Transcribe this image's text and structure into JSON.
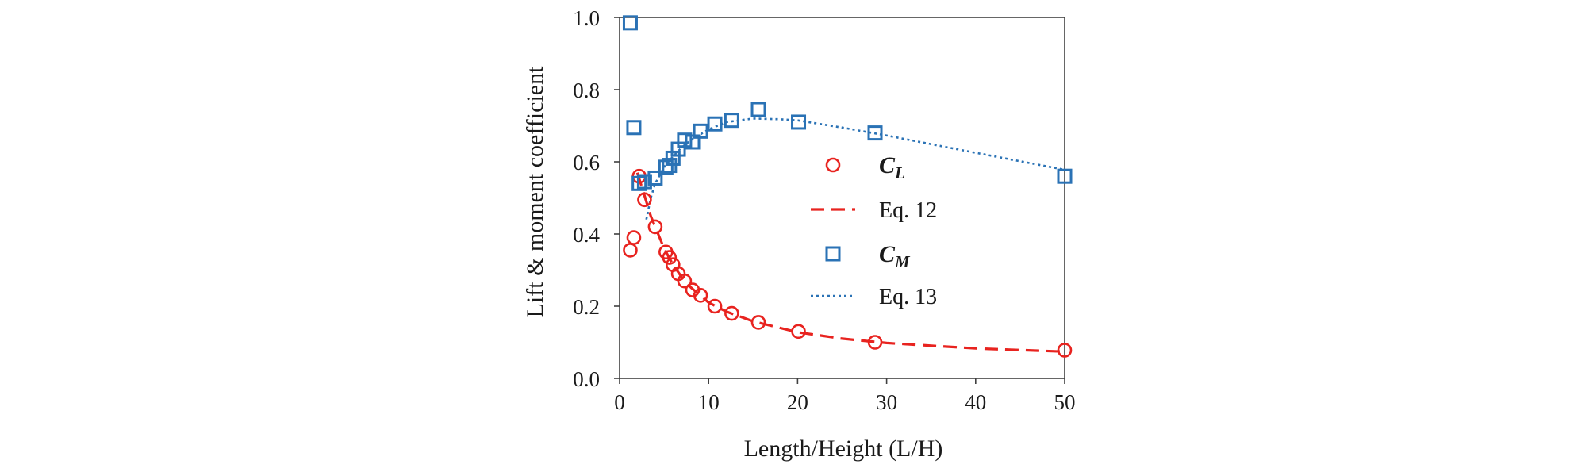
{
  "chart_data": {
    "type": "scatter",
    "xlabel": "Length/Height (L/H)",
    "ylabel": "Lift & moment coefficient",
    "xlim": [
      0,
      50
    ],
    "ylim": [
      0,
      1
    ],
    "xticks": [
      0,
      10,
      20,
      30,
      40,
      50
    ],
    "xtick_labels": [
      "0",
      "10",
      "20",
      "30",
      "40",
      "50"
    ],
    "yticks": [
      0,
      0.2,
      0.4,
      0.6,
      0.8,
      1.0
    ],
    "ytick_labels": [
      "0.0",
      "0.2",
      "0.4",
      "0.6",
      "0.8",
      "1.0"
    ],
    "grid": false,
    "legend_position": "center-right",
    "colors": {
      "cl": "#e8231f",
      "cm": "#2a72b5",
      "axis": "#404040"
    },
    "series": [
      {
        "name": "CL",
        "legend_symbol": "C",
        "legend_sub": "L",
        "marker": "circle",
        "color": "#e8231f",
        "points": [
          [
            1.2,
            0.355
          ],
          [
            1.6,
            0.39
          ],
          [
            2.2,
            0.56
          ],
          [
            2.8,
            0.495
          ],
          [
            4.0,
            0.42
          ],
          [
            5.2,
            0.35
          ],
          [
            5.6,
            0.335
          ],
          [
            6.0,
            0.315
          ],
          [
            6.6,
            0.29
          ],
          [
            7.3,
            0.27
          ],
          [
            8.2,
            0.245
          ],
          [
            9.1,
            0.23
          ],
          [
            10.7,
            0.2
          ],
          [
            12.6,
            0.18
          ],
          [
            15.6,
            0.155
          ],
          [
            20.1,
            0.13
          ],
          [
            28.7,
            0.1
          ],
          [
            50.0,
            0.078
          ]
        ]
      },
      {
        "name": "Eq. 12",
        "line_style": "dashed",
        "color": "#e8231f",
        "points": [
          [
            2.0,
            0.57
          ],
          [
            2.5,
            0.53
          ],
          [
            3.0,
            0.49
          ],
          [
            3.5,
            0.45
          ],
          [
            4.0,
            0.42
          ],
          [
            5.0,
            0.36
          ],
          [
            6.0,
            0.315
          ],
          [
            7.0,
            0.28
          ],
          [
            8.0,
            0.252
          ],
          [
            10.0,
            0.21
          ],
          [
            12.0,
            0.185
          ],
          [
            15.0,
            0.158
          ],
          [
            20.0,
            0.128
          ],
          [
            25.0,
            0.11
          ],
          [
            30.0,
            0.098
          ],
          [
            40.0,
            0.083
          ],
          [
            50.0,
            0.074
          ]
        ]
      },
      {
        "name": "CM",
        "legend_symbol": "C",
        "legend_sub": "M",
        "marker": "square",
        "color": "#2a72b5",
        "points": [
          [
            1.2,
            0.985
          ],
          [
            1.6,
            0.695
          ],
          [
            2.2,
            0.54
          ],
          [
            2.8,
            0.545
          ],
          [
            4.0,
            0.555
          ],
          [
            5.2,
            0.585
          ],
          [
            5.6,
            0.59
          ],
          [
            6.0,
            0.61
          ],
          [
            6.6,
            0.635
          ],
          [
            7.3,
            0.66
          ],
          [
            8.2,
            0.655
          ],
          [
            9.1,
            0.685
          ],
          [
            10.7,
            0.705
          ],
          [
            12.6,
            0.715
          ],
          [
            15.6,
            0.745
          ],
          [
            20.1,
            0.71
          ],
          [
            28.7,
            0.68
          ],
          [
            50.0,
            0.56
          ]
        ]
      },
      {
        "name": "Eq. 13",
        "line_style": "dotted",
        "color": "#2a72b5",
        "points": [
          [
            3.0,
            0.44
          ],
          [
            3.5,
            0.5
          ],
          [
            4.0,
            0.54
          ],
          [
            5.0,
            0.585
          ],
          [
            6.0,
            0.615
          ],
          [
            7.0,
            0.64
          ],
          [
            8.0,
            0.66
          ],
          [
            10.0,
            0.69
          ],
          [
            12.0,
            0.71
          ],
          [
            15.0,
            0.72
          ],
          [
            18.0,
            0.718
          ],
          [
            20.0,
            0.715
          ],
          [
            25.0,
            0.695
          ],
          [
            30.0,
            0.673
          ],
          [
            40.0,
            0.625
          ],
          [
            50.0,
            0.578
          ]
        ]
      }
    ]
  }
}
